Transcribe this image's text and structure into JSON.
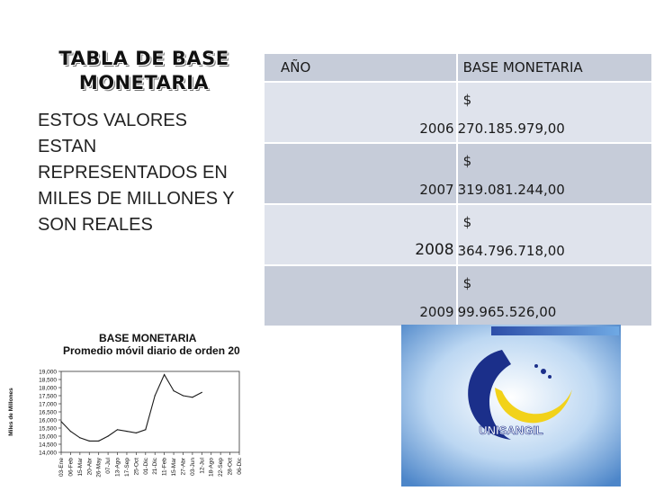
{
  "slide": {
    "title_line1": "TABLA DE BASE",
    "title_line2": "MONETARIA",
    "body": "ESTOS VALORES ESTAN REPRESENTADOS EN MILES DE MILLONES Y SON REALES"
  },
  "table": {
    "headers": [
      "AÑO",
      "BASE MONETARIA"
    ],
    "rows": [
      {
        "year": "2006",
        "currency": "$",
        "amount": "270.185.979,00"
      },
      {
        "year": "2007",
        "currency": "$",
        "amount": "319.081.244,00"
      },
      {
        "year": "2008",
        "currency": "$",
        "amount": "364.796.718,00"
      },
      {
        "year": "2009",
        "currency": "$",
        "amount": "99.965.526,00"
      }
    ]
  },
  "chart_data": {
    "type": "line",
    "title": "BASE MONETARIA",
    "subtitle": "Promedio móvil diario de orden 20",
    "ylabel": "Miles de Millones",
    "ylim": [
      14000,
      19000
    ],
    "yticks": [
      "19,000",
      "18,500",
      "18,000",
      "17,500",
      "17,000",
      "16,500",
      "16,000",
      "15,500",
      "15,000",
      "14,500",
      "14,000"
    ],
    "xticks": [
      "03-Ene",
      "06-Feb",
      "15-Mar",
      "20-Abr",
      "26-May",
      "07-Jul",
      "13-Ago",
      "17-Sep",
      "25-Oct",
      "01-Dic",
      "21-Dic",
      "11-Feb",
      "15-Mar",
      "27-Abr",
      "03-Jun",
      "12-Jul",
      "18-Ago",
      "22-Sep",
      "28-Oct",
      "06-Dic"
    ],
    "x": [
      0,
      1,
      2,
      3,
      4,
      5,
      6,
      7,
      8,
      9,
      10,
      11,
      12,
      13,
      14,
      15
    ],
    "values": [
      15900,
      15300,
      14900,
      14700,
      14700,
      15000,
      15400,
      15300,
      15200,
      15400,
      17500,
      18800,
      17800,
      17500,
      17400,
      17700
    ]
  },
  "logo": {
    "text": "UNISANGIL",
    "colors": {
      "primary": "#1b2f8a",
      "accent": "#f2d21a",
      "sky": "#6fa9e4"
    }
  },
  "colors": {
    "table_dark": "#c6ccd9",
    "table_light": "#dfe3ec"
  }
}
